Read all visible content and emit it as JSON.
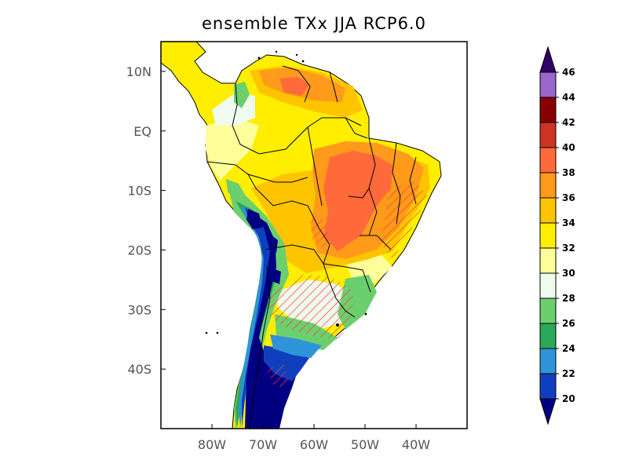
{
  "title": "ensemble TXx JJA RCP6.0",
  "map": {
    "region": "South America",
    "variable": "TXx",
    "season": "JJA",
    "scenario": "RCP6.0",
    "lon_range": [
      -90,
      -30
    ],
    "lat_range": [
      -50,
      15
    ],
    "x_ticks": [
      {
        "lon": -80,
        "label": "80W"
      },
      {
        "lon": -70,
        "label": "70W"
      },
      {
        "lon": -60,
        "label": "60W"
      },
      {
        "lon": -50,
        "label": "50W"
      },
      {
        "lon": -40,
        "label": "40W"
      }
    ],
    "y_ticks": [
      {
        "lat": 10,
        "label": "10N"
      },
      {
        "lat": 0,
        "label": "EQ"
      },
      {
        "lat": -10,
        "label": "10S"
      },
      {
        "lat": -20,
        "label": "20S"
      },
      {
        "lat": -30,
        "label": "30S"
      },
      {
        "lat": -40,
        "label": "40S"
      }
    ]
  },
  "colorbar": {
    "levels": [
      "20",
      "22",
      "24",
      "26",
      "28",
      "30",
      "32",
      "34",
      "36",
      "38",
      "40",
      "42",
      "44",
      "46"
    ],
    "colors": [
      "#000080",
      "#0f3fbf",
      "#2f93d9",
      "#2aa85a",
      "#6ccf6e",
      "#eefbee",
      "#ffff99",
      "#ffee00",
      "#ffc400",
      "#ff9a1a",
      "#ff6a3a",
      "#cc3322",
      "#880000",
      "#9966cc",
      "#330066"
    ],
    "extend_both": true
  }
}
